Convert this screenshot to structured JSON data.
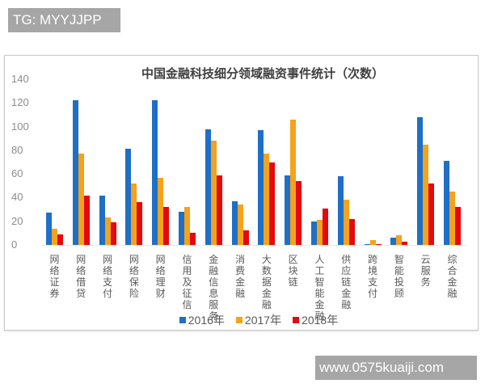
{
  "watermarks": {
    "top": "TG: MYYJJPP",
    "bottom": "www.0575kuaiji.com"
  },
  "colors": {
    "2016": "#1f6fc5",
    "2017": "#f5a21c",
    "2018": "#e5080d"
  },
  "chart_data": {
    "type": "bar",
    "title": "中国金融科技细分领域融资事件统计（次数）",
    "xlabel": "",
    "ylabel": "",
    "ylim": [
      0,
      140
    ],
    "yticks": [
      0,
      20,
      40,
      60,
      80,
      100,
      120,
      140
    ],
    "grid": false,
    "legend_position": "bottom",
    "categories": [
      "网络证券",
      "网络借贷",
      "网络支付",
      "网络保险",
      "网络理财",
      "信用及征信",
      "金融信息服务",
      "消费金融",
      "大数据金融",
      "区块链",
      "人工智能金融",
      "供应链金融",
      "跨境支付",
      "智能投顾",
      "云服务",
      "综合金融"
    ],
    "series": [
      {
        "name": "2016年",
        "values": [
          27,
          122,
          42,
          81,
          122,
          28,
          98,
          37,
          97,
          59,
          20,
          58,
          1,
          6,
          108,
          71
        ]
      },
      {
        "name": "2017年",
        "values": [
          14,
          77,
          23,
          52,
          57,
          32,
          88,
          34,
          77,
          106,
          21,
          38,
          4,
          8,
          85,
          45
        ]
      },
      {
        "name": "2018年",
        "values": [
          9,
          42,
          19,
          36,
          32,
          10,
          59,
          12,
          70,
          54,
          31,
          22,
          1,
          3,
          52,
          32
        ]
      }
    ]
  },
  "legend": [
    {
      "label": "2016年",
      "color": "#1f6fc5"
    },
    {
      "label": "2017年",
      "color": "#f5a21c"
    },
    {
      "label": "2018年",
      "color": "#e5080d"
    }
  ]
}
